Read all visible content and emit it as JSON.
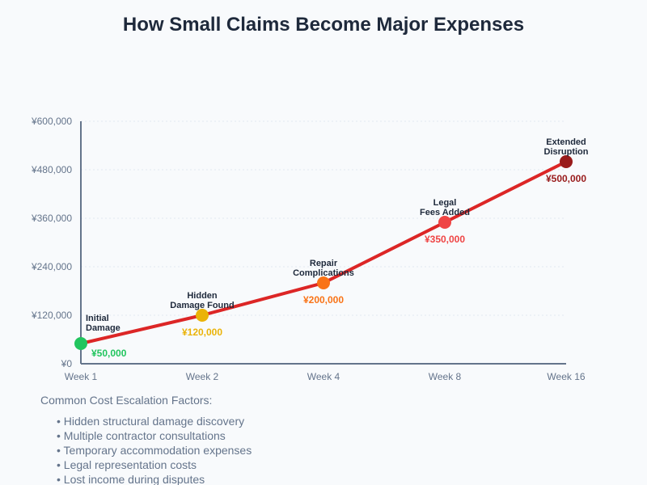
{
  "chart_data": {
    "type": "line",
    "title": "How Small Claims Become Major Expenses",
    "categories": [
      "Week 1",
      "Week 2",
      "Week 4",
      "Week 8",
      "Week 16"
    ],
    "values": [
      50000,
      120000,
      200000,
      350000,
      500000
    ],
    "value_labels": [
      "¥50,000",
      "¥120,000",
      "¥200,000",
      "¥350,000",
      "¥500,000"
    ],
    "point_labels": [
      [
        "Initial",
        "Damage"
      ],
      [
        "Hidden",
        "Damage Found"
      ],
      [
        "Repair",
        "Complications"
      ],
      [
        "Legal",
        "Fees Added"
      ],
      [
        "Extended",
        "Disruption"
      ]
    ],
    "point_colors": [
      "#22c55e",
      "#eab308",
      "#f97316",
      "#ef4444",
      "#991b1b"
    ],
    "line_color": "#dc2626",
    "ylim": [
      0,
      600000
    ],
    "yticks": [
      0,
      120000,
      240000,
      360000,
      480000,
      600000
    ],
    "ytick_labels": [
      "¥0",
      "¥120,000",
      "¥240,000",
      "¥360,000",
      "¥480,000",
      "¥600,000"
    ],
    "grid": true
  },
  "factors": {
    "title": "Common Cost Escalation Factors:",
    "items": [
      "Hidden structural damage discovery",
      "Multiple contractor consultations",
      "Temporary accommodation expenses",
      "Legal representation costs",
      "Lost income during disputes"
    ]
  }
}
